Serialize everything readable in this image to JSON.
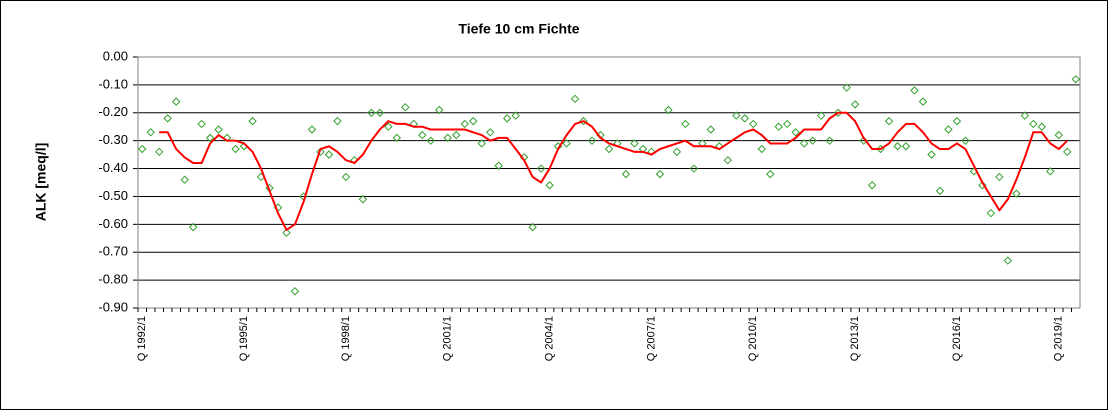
{
  "chart_data": {
    "type": "line",
    "title": "Tiefe  10 cm     Fichte",
    "y_label": "ALK [meq/l]",
    "ylim": [
      -0.9,
      0
    ],
    "yticks": [
      {
        "value": 0,
        "label": "0.00"
      },
      {
        "value": -0.1,
        "label": "-0.10"
      },
      {
        "value": -0.2,
        "label": "-0.20"
      },
      {
        "value": -0.3,
        "label": "-0.30"
      },
      {
        "value": -0.4,
        "label": "-0.40"
      },
      {
        "value": -0.5,
        "label": "-0.50"
      },
      {
        "value": -0.6,
        "label": "-0.60"
      },
      {
        "value": -0.7,
        "label": "-0.70"
      },
      {
        "value": -0.8,
        "label": "-0.80"
      },
      {
        "value": -0.9,
        "label": "-0.90"
      }
    ],
    "grid": true,
    "categories": [
      "Q 1992/1",
      null,
      null,
      null,
      null,
      null,
      null,
      null,
      null,
      null,
      null,
      null,
      "Q 1995/1",
      null,
      null,
      null,
      null,
      null,
      null,
      null,
      null,
      null,
      null,
      null,
      "Q 1998/1",
      null,
      null,
      null,
      null,
      null,
      null,
      null,
      null,
      null,
      null,
      null,
      "Q 2001/1",
      null,
      null,
      null,
      null,
      null,
      null,
      null,
      null,
      null,
      null,
      null,
      "Q 2004/1",
      null,
      null,
      null,
      null,
      null,
      null,
      null,
      null,
      null,
      null,
      null,
      "Q 2007/1",
      null,
      null,
      null,
      null,
      null,
      null,
      null,
      null,
      null,
      null,
      null,
      "Q 2010/1",
      null,
      null,
      null,
      null,
      null,
      null,
      null,
      null,
      null,
      null,
      null,
      "Q 2013/1",
      null,
      null,
      null,
      null,
      null,
      null,
      null,
      null,
      null,
      null,
      null,
      "Q 2016/1",
      null,
      null,
      null,
      null,
      null,
      null,
      null,
      null,
      null,
      null,
      null,
      "Q 2019/1",
      null,
      null
    ],
    "series": [
      {
        "style": "markers",
        "color": "#33a02c",
        "values": [
          -0.33,
          -0.27,
          -0.34,
          -0.22,
          -0.16,
          -0.44,
          -0.61,
          -0.24,
          -0.29,
          -0.26,
          -0.29,
          -0.33,
          -0.32,
          -0.23,
          -0.43,
          -0.47,
          -0.54,
          -0.63,
          -0.84,
          -0.5,
          -0.26,
          -0.34,
          -0.35,
          -0.23,
          -0.43,
          -0.37,
          -0.51,
          -0.2,
          -0.2,
          -0.25,
          -0.29,
          -0.18,
          -0.24,
          -0.28,
          -0.3,
          -0.19,
          -0.29,
          -0.28,
          -0.24,
          -0.23,
          -0.31,
          -0.27,
          -0.39,
          -0.22,
          -0.21,
          -0.36,
          -0.61,
          -0.4,
          -0.46,
          -0.32,
          -0.31,
          -0.15,
          -0.23,
          -0.3,
          -0.28,
          -0.33,
          -0.31,
          -0.42,
          -0.31,
          -0.33,
          -0.34,
          -0.42,
          -0.19,
          -0.34,
          -0.24,
          -0.4,
          -0.31,
          -0.26,
          -0.32,
          -0.37,
          -0.21,
          -0.22,
          -0.24,
          -0.33,
          -0.42,
          -0.25,
          -0.24,
          -0.27,
          -0.31,
          -0.3,
          -0.21,
          -0.3,
          -0.2,
          -0.11,
          -0.17,
          -0.3,
          -0.46,
          -0.33,
          -0.23,
          -0.32,
          -0.32,
          -0.12,
          -0.16,
          -0.35,
          -0.48,
          -0.26,
          -0.23,
          -0.3,
          -0.41,
          -0.46,
          -0.56,
          -0.43,
          -0.73,
          -0.49,
          -0.21,
          -0.24,
          -0.25,
          -0.41,
          -0.28,
          -0.34,
          -0.08
        ]
      },
      {
        "style": "line",
        "color": "#ff0000",
        "values": [
          null,
          null,
          -0.27,
          -0.27,
          -0.33,
          -0.36,
          -0.38,
          -0.38,
          -0.31,
          -0.28,
          -0.3,
          -0.3,
          -0.31,
          -0.34,
          -0.4,
          -0.48,
          -0.56,
          -0.62,
          -0.6,
          -0.52,
          -0.42,
          -0.33,
          -0.32,
          -0.34,
          -0.37,
          -0.38,
          -0.35,
          -0.3,
          -0.26,
          -0.23,
          -0.24,
          -0.24,
          -0.25,
          -0.25,
          -0.26,
          -0.26,
          -0.26,
          -0.26,
          -0.26,
          -0.27,
          -0.28,
          -0.3,
          -0.29,
          -0.29,
          -0.33,
          -0.37,
          -0.43,
          -0.45,
          -0.4,
          -0.33,
          -0.28,
          -0.24,
          -0.23,
          -0.25,
          -0.29,
          -0.31,
          -0.32,
          -0.33,
          -0.34,
          -0.34,
          -0.35,
          -0.33,
          -0.32,
          -0.31,
          -0.3,
          -0.32,
          -0.32,
          -0.32,
          -0.33,
          -0.31,
          -0.29,
          -0.27,
          -0.26,
          -0.28,
          -0.31,
          -0.31,
          -0.31,
          -0.29,
          -0.26,
          -0.26,
          -0.26,
          -0.22,
          -0.2,
          -0.2,
          -0.23,
          -0.29,
          -0.33,
          -0.33,
          -0.31,
          -0.27,
          -0.24,
          -0.24,
          -0.27,
          -0.31,
          -0.33,
          -0.33,
          -0.31,
          -0.33,
          -0.39,
          -0.45,
          -0.5,
          -0.55,
          -0.51,
          -0.44,
          -0.36,
          -0.27,
          -0.27,
          -0.31,
          -0.33,
          -0.3,
          null
        ]
      }
    ]
  }
}
